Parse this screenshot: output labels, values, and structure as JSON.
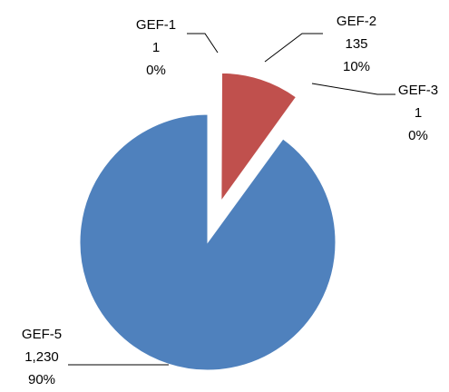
{
  "chart_data": {
    "type": "pie",
    "title": "",
    "series": [
      {
        "name": "",
        "slices": [
          {
            "label": "GEF-1",
            "value": 1,
            "value_text": "1",
            "percent_text": "0%",
            "color": "#4f81bd"
          },
          {
            "label": "GEF-2",
            "value": 135,
            "value_text": "135",
            "percent_text": "10%",
            "color": "#c0504d"
          },
          {
            "label": "GEF-3",
            "value": 1,
            "value_text": "1",
            "percent_text": "0%",
            "color": "#9bbb59"
          },
          {
            "label": "GEF-5",
            "value": 1230,
            "value_text": "1,230",
            "percent_text": "90%",
            "color": "#4f81bd"
          }
        ]
      }
    ],
    "exploded": true,
    "legend": "none",
    "data_labels": "outside with leader lines"
  }
}
